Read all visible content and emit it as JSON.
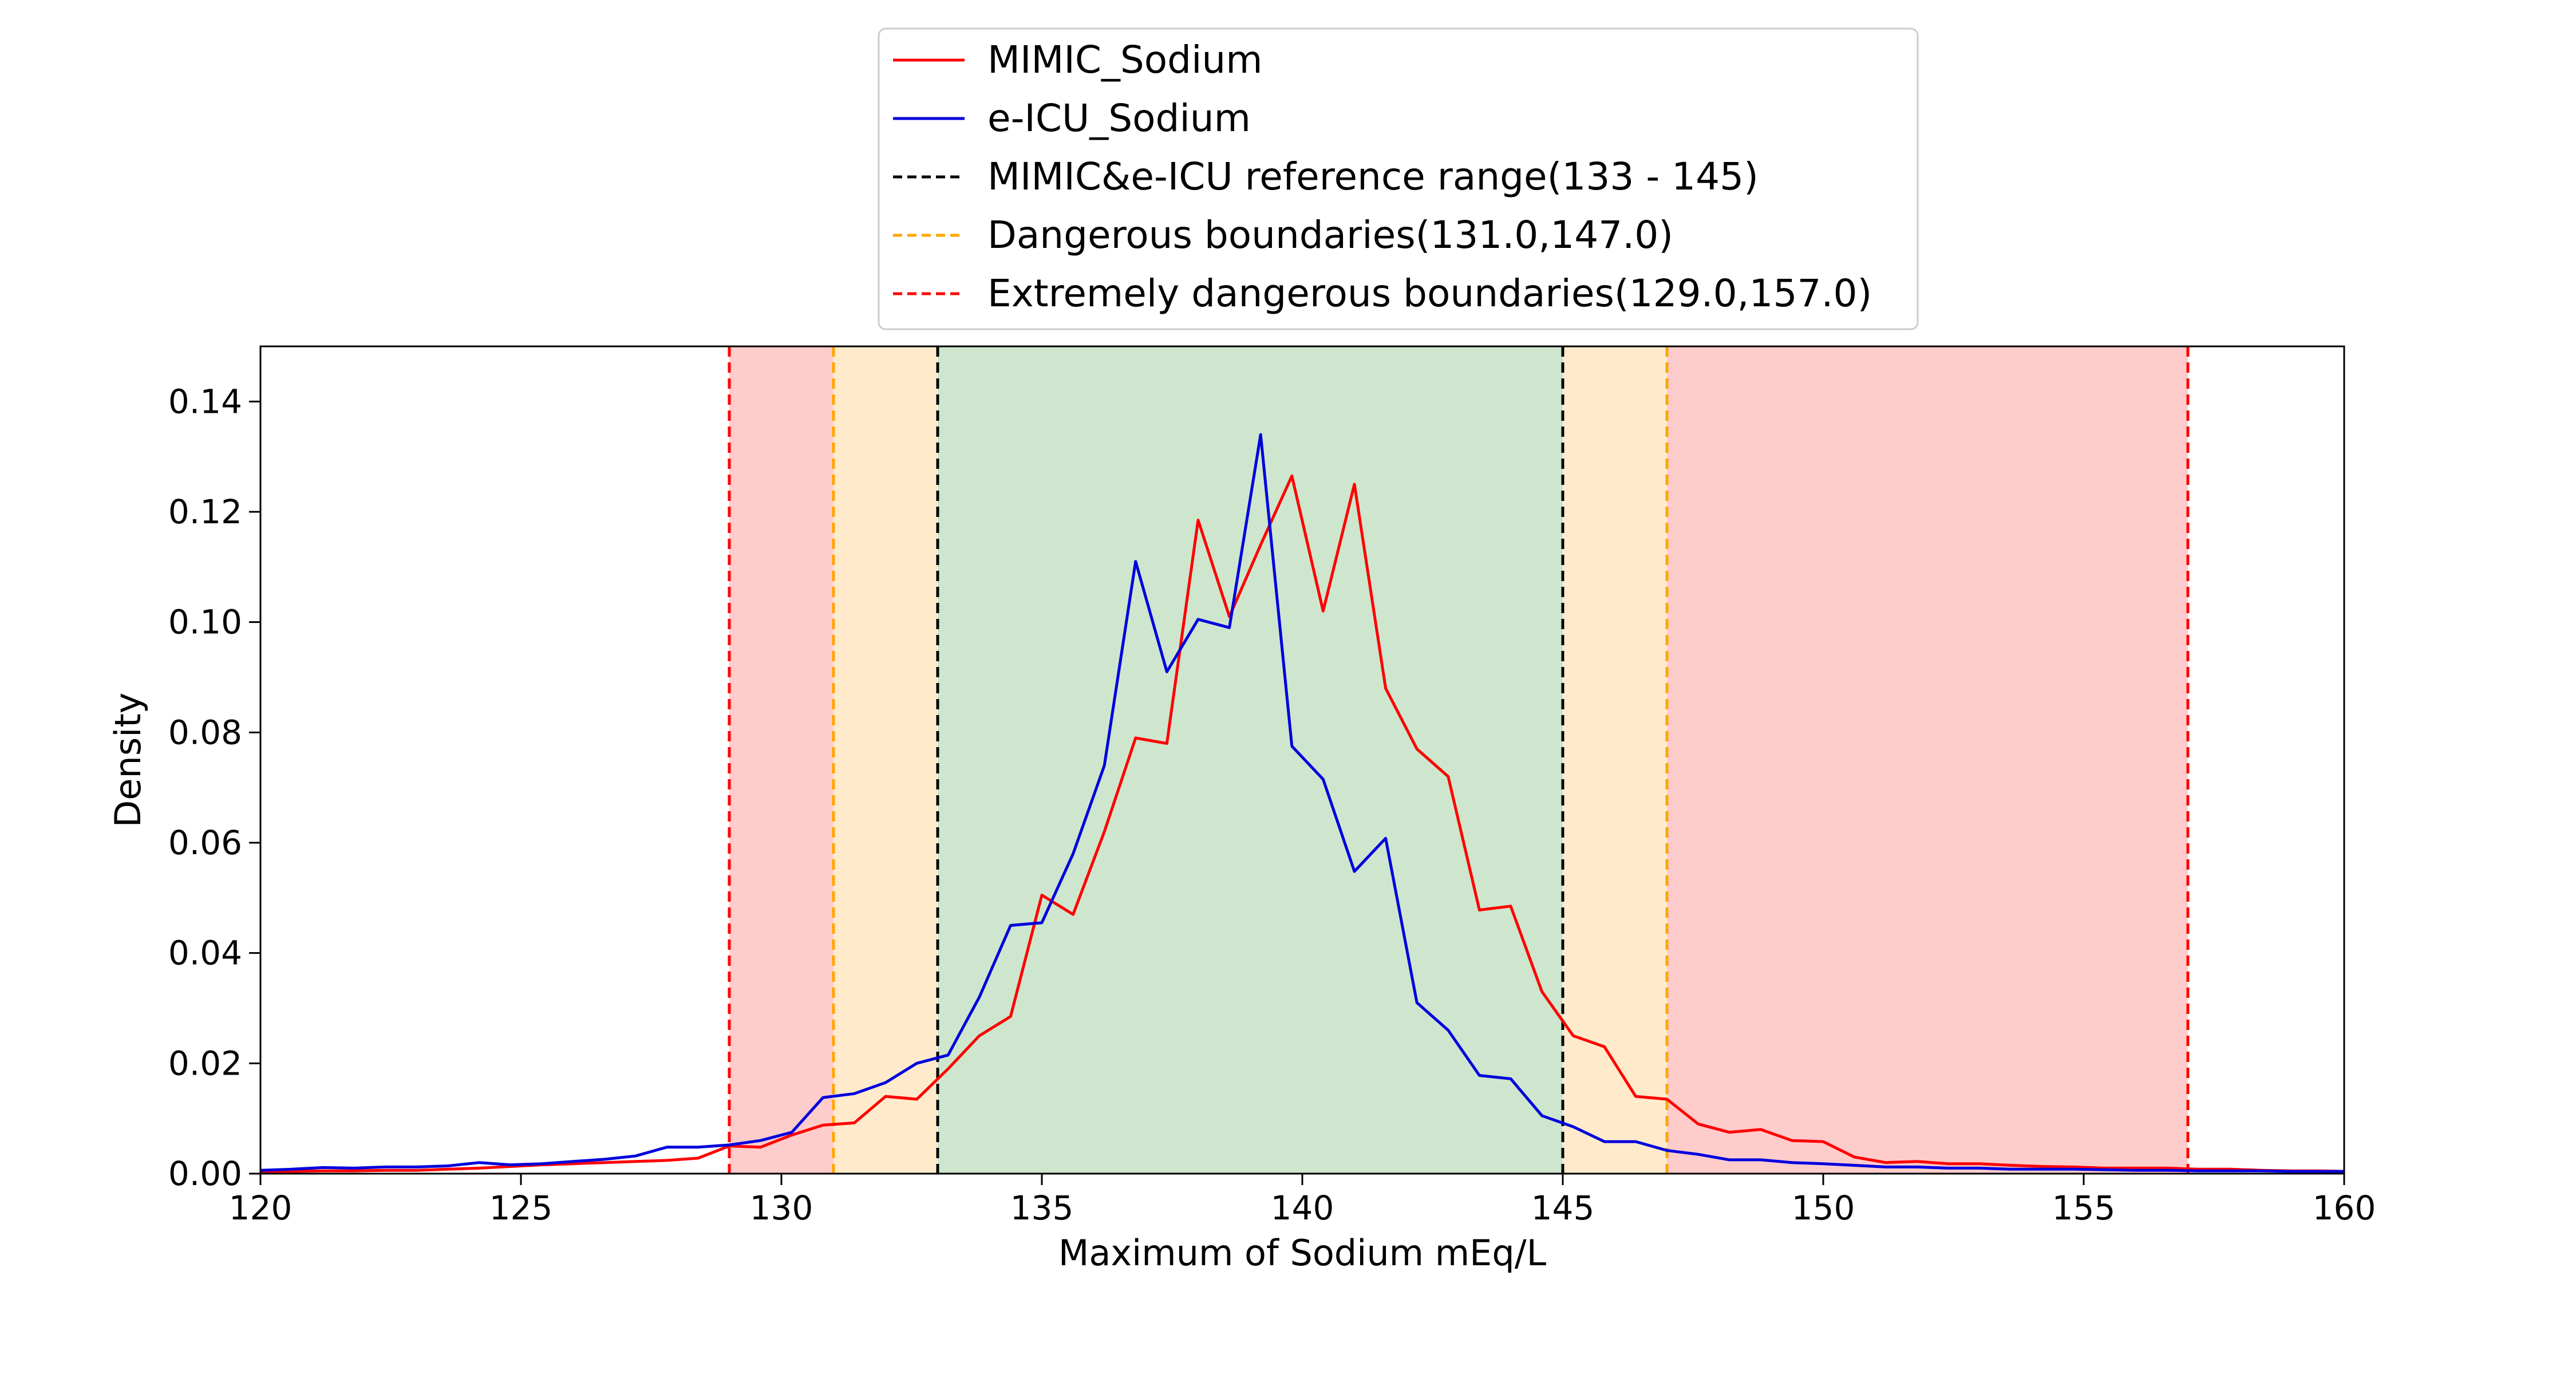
{
  "chart_data": {
    "type": "line",
    "xlabel": "Maximum of Sodium mEq/L",
    "ylabel": "Density",
    "xlim": [
      120,
      160
    ],
    "ylim": [
      0,
      0.15
    ],
    "x_ticks": [
      "120",
      "125",
      "130",
      "135",
      "140",
      "145",
      "150",
      "155",
      "160"
    ],
    "y_ticks": [
      "0.00",
      "0.02",
      "0.04",
      "0.06",
      "0.08",
      "0.10",
      "0.12",
      "0.14"
    ],
    "grid": false,
    "legend_position": "above plot, centered",
    "series": [
      {
        "name": "MIMIC_Sodium",
        "color": "#ff0000",
        "x": [
          120,
          120.6,
          121.2,
          121.8,
          122.4,
          123.0,
          123.6,
          124.2,
          124.8,
          125.4,
          126.0,
          126.6,
          127.2,
          127.8,
          128.4,
          129.0,
          129.6,
          130.2,
          130.8,
          131.4,
          132.0,
          132.6,
          133.2,
          133.8,
          134.4,
          135.0,
          135.6,
          136.2,
          136.8,
          137.4,
          138.0,
          138.6,
          139.2,
          139.8,
          140.4,
          141.0,
          141.6,
          142.2,
          142.8,
          143.4,
          144.0,
          144.6,
          145.2,
          145.8,
          146.4,
          147.0,
          147.6,
          148.2,
          148.8,
          149.4,
          150.0,
          150.6,
          151.2,
          151.8,
          152.4,
          153.0,
          153.6,
          154.2,
          154.8,
          155.4,
          156.0,
          156.6,
          157.2,
          157.8,
          158.4,
          159.0,
          159.6,
          160.0
        ],
        "y": [
          0.0003,
          0.0004,
          0.0005,
          0.0005,
          0.0006,
          0.0006,
          0.0008,
          0.001,
          0.0013,
          0.0016,
          0.0018,
          0.002,
          0.0022,
          0.0024,
          0.0028,
          0.005,
          0.0048,
          0.007,
          0.0088,
          0.0092,
          0.014,
          0.0135,
          0.019,
          0.025,
          0.0285,
          0.0505,
          0.047,
          0.062,
          0.079,
          0.078,
          0.1185,
          0.101,
          0.114,
          0.1265,
          0.102,
          0.125,
          0.088,
          0.077,
          0.072,
          0.0478,
          0.0485,
          0.033,
          0.025,
          0.023,
          0.014,
          0.0135,
          0.009,
          0.0075,
          0.008,
          0.006,
          0.0058,
          0.003,
          0.002,
          0.0022,
          0.0018,
          0.0018,
          0.0015,
          0.0013,
          0.0012,
          0.001,
          0.001,
          0.001,
          0.0008,
          0.0008,
          0.0006,
          0.0005,
          0.0005,
          0.0004
        ]
      },
      {
        "name": "e-ICU_Sodium",
        "color": "#0000dd",
        "x": [
          120,
          120.6,
          121.2,
          121.8,
          122.4,
          123.0,
          123.6,
          124.2,
          124.8,
          125.4,
          126.0,
          126.6,
          127.2,
          127.8,
          128.4,
          129.0,
          129.6,
          130.2,
          130.8,
          131.4,
          132.0,
          132.6,
          133.2,
          133.8,
          134.4,
          135.0,
          135.6,
          136.2,
          136.8,
          137.4,
          138.0,
          138.6,
          139.2,
          139.8,
          140.4,
          141.0,
          141.6,
          142.2,
          142.8,
          143.4,
          144.0,
          144.6,
          145.2,
          145.8,
          146.4,
          147.0,
          147.6,
          148.2,
          148.8,
          149.4,
          150.0,
          150.6,
          151.2,
          151.8,
          152.4,
          153.0,
          153.6,
          154.2,
          154.8,
          155.4,
          156.0,
          156.6,
          157.2,
          157.8,
          158.4,
          159.0,
          159.6,
          160.0
        ],
        "y": [
          0.0006,
          0.0008,
          0.0011,
          0.001,
          0.0012,
          0.0012,
          0.0014,
          0.002,
          0.0016,
          0.0018,
          0.0022,
          0.0026,
          0.0032,
          0.0048,
          0.0048,
          0.0052,
          0.006,
          0.0075,
          0.0138,
          0.0145,
          0.0165,
          0.02,
          0.0215,
          0.032,
          0.045,
          0.0455,
          0.058,
          0.074,
          0.111,
          0.091,
          0.1005,
          0.099,
          0.134,
          0.0775,
          0.0715,
          0.0548,
          0.0608,
          0.031,
          0.026,
          0.0178,
          0.0172,
          0.0105,
          0.0085,
          0.0058,
          0.0058,
          0.0042,
          0.0035,
          0.0025,
          0.0025,
          0.002,
          0.0018,
          0.0015,
          0.0012,
          0.0012,
          0.001,
          0.001,
          0.0008,
          0.0008,
          0.0008,
          0.0007,
          0.0006,
          0.0006,
          0.0005,
          0.0005,
          0.0005,
          0.0004,
          0.0004,
          0.0004
        ]
      }
    ],
    "reference_lines": [
      {
        "name": "MIMIC&e-ICU reference range(133 - 145)",
        "color": "#000000",
        "values": [
          133,
          145
        ]
      },
      {
        "name": "Dangerous boundaries(131.0,147.0)",
        "color": "#ffa500",
        "values": [
          131.0,
          147.0
        ]
      },
      {
        "name": "Extremely dangerous boundaries(129.0,157.0)",
        "color": "#ff0000",
        "values": [
          129.0,
          157.0
        ]
      }
    ],
    "shaded_regions": [
      {
        "from": 129,
        "to": 131,
        "color": "#ffcccc"
      },
      {
        "from": 131,
        "to": 133,
        "color": "#ffebcc"
      },
      {
        "from": 133,
        "to": 145,
        "color": "#cee6ce"
      },
      {
        "from": 145,
        "to": 147,
        "color": "#ffebcc"
      },
      {
        "from": 147,
        "to": 157,
        "color": "#ffcccc"
      }
    ],
    "legend": [
      {
        "label": "MIMIC_Sodium",
        "color": "#ff0000",
        "style": "solid"
      },
      {
        "label": "e-ICU_Sodium",
        "color": "#0000dd",
        "style": "solid"
      },
      {
        "label": "MIMIC&e-ICU reference range(133 - 145)",
        "color": "#000000",
        "style": "dashed"
      },
      {
        "label": "Dangerous boundaries(131.0,147.0)",
        "color": "#ffa500",
        "style": "dashed"
      },
      {
        "label": "Extremely dangerous boundaries(129.0,157.0)",
        "color": "#ff0000",
        "style": "dashed"
      }
    ]
  }
}
